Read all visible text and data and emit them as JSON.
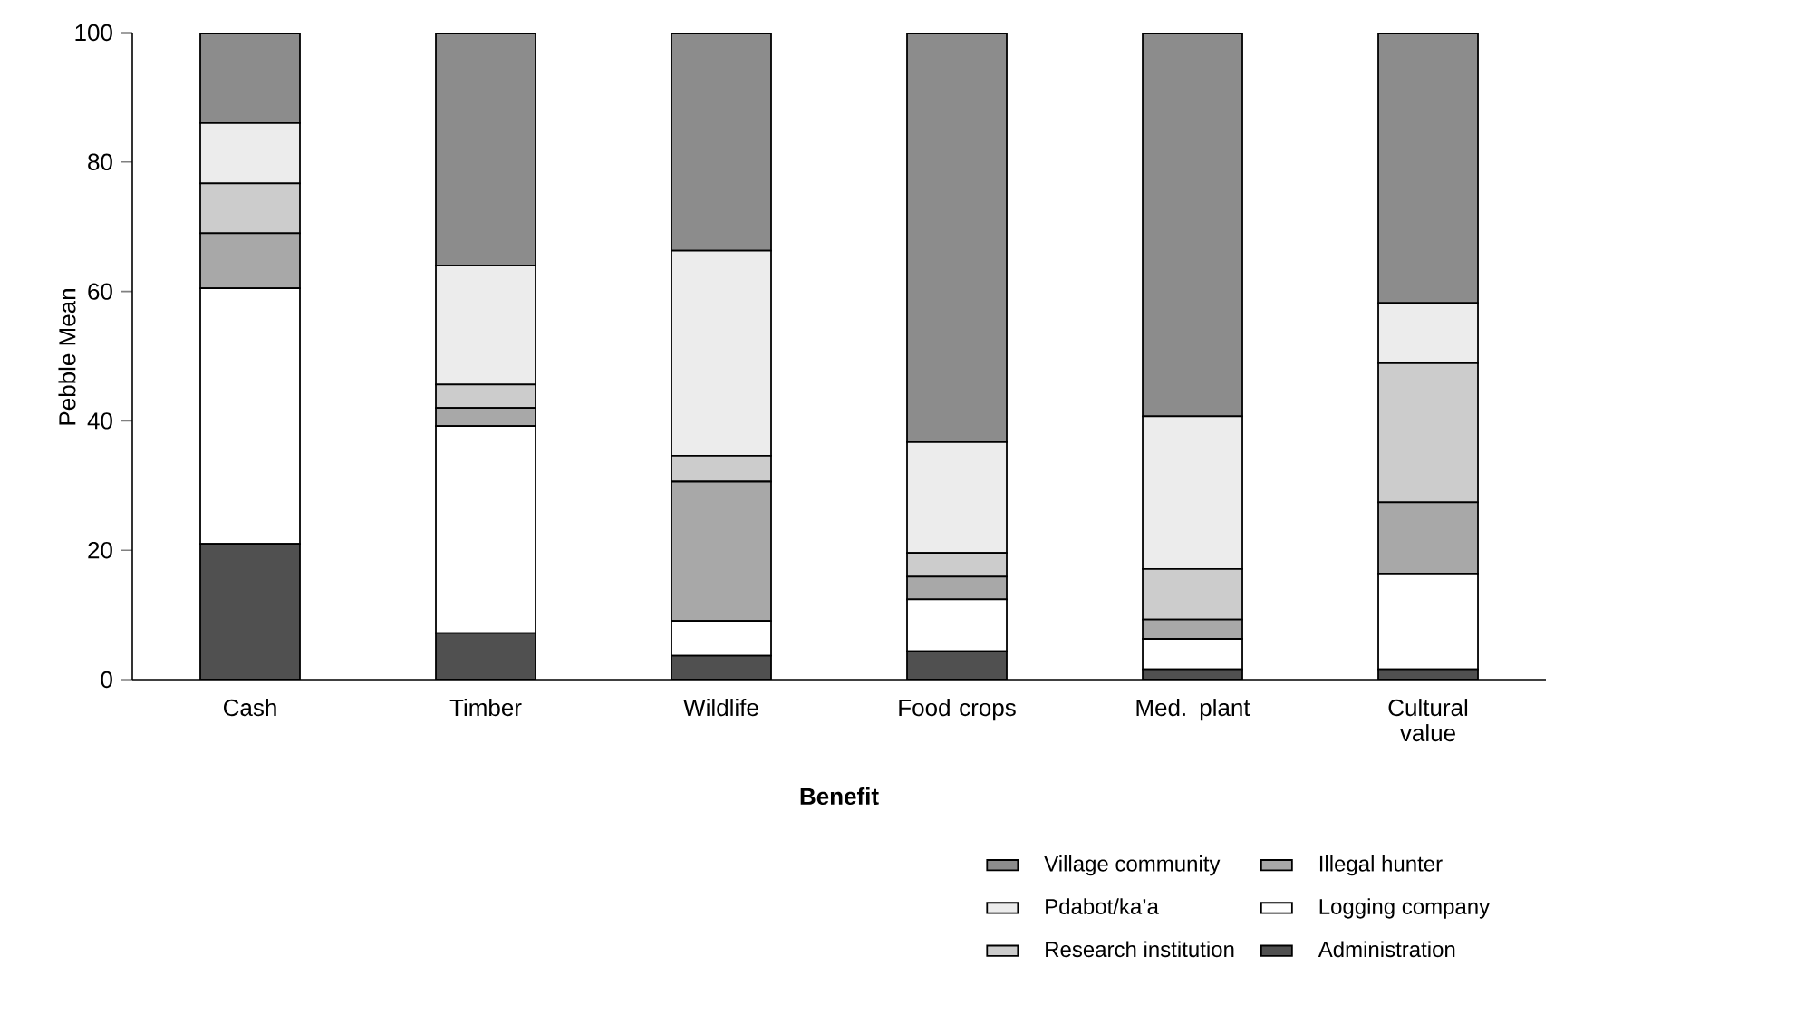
{
  "chart_data": {
    "type": "bar",
    "stacked": true,
    "xlabel": "Benefit",
    "ylabel": "Pebble Mean",
    "categories": [
      "Cash",
      "Timber",
      "Wildlife",
      "Food crops",
      "Med. plant",
      "Cultural value"
    ],
    "ylim": [
      0,
      100
    ],
    "yticks": [
      0,
      20,
      40,
      60,
      80,
      100
    ],
    "grid": false,
    "legend": "bottom right",
    "series": [
      {
        "name": "Administration",
        "color": "#505050",
        "values": [
          21,
          7.2,
          3.7,
          4.4,
          1.6,
          1.6
        ]
      },
      {
        "name": "Logging company",
        "color": "#ffffff",
        "values": [
          39.5,
          32,
          5.4,
          8,
          4.7,
          14.8
        ]
      },
      {
        "name": "Illegal hunter",
        "color": "#a8a8a8",
        "values": [
          8.5,
          2.8,
          21.5,
          3.5,
          3,
          11
        ]
      },
      {
        "name": "Research institution",
        "color": "#cccccc",
        "values": [
          7.7,
          3.6,
          4,
          3.7,
          7.8,
          21.5
        ]
      },
      {
        "name": "Pdabot/ka’a",
        "color": "#ececec",
        "values": [
          9.3,
          18.4,
          31.7,
          17.1,
          23.6,
          9.3
        ]
      },
      {
        "name": "Village community",
        "color": "#8c8c8c",
        "values": [
          14,
          36,
          33.7,
          63.3,
          59.3,
          41.8
        ]
      }
    ]
  }
}
